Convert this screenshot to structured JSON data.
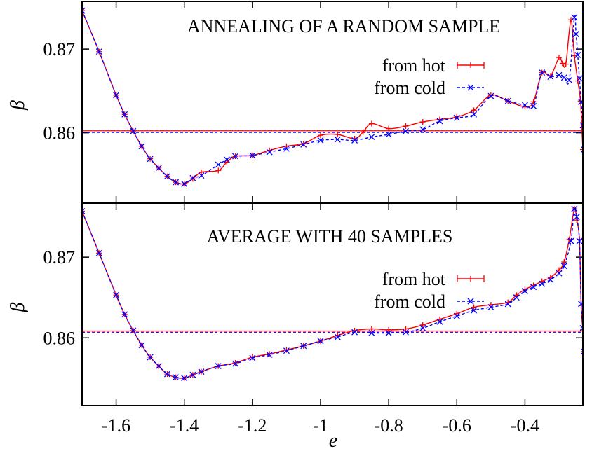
{
  "chart_data": [
    {
      "type": "line",
      "title": "ANNEALING OF A RANDOM SAMPLE",
      "ylabel": "β",
      "xlabel": "",
      "xlim": [
        -1.7,
        -0.23
      ],
      "ylim": [
        0.8516,
        0.8757
      ],
      "yticks": [
        "0.86",
        "0.87"
      ],
      "ytick_values": [
        0.86,
        0.87
      ],
      "grid": false,
      "legend": "top-right",
      "series": [
        {
          "name": "from hot",
          "color": "#ff0000",
          "marker": "plus-errorbar",
          "line": "solid",
          "points": [
            [
              -1.7,
              0.8746
            ],
            [
              -1.65,
              0.8697
            ],
            [
              -1.6,
              0.8645
            ],
            [
              -1.575,
              0.8622
            ],
            [
              -1.55,
              0.8602
            ],
            [
              -1.525,
              0.8584
            ],
            [
              -1.5,
              0.8569
            ],
            [
              -1.475,
              0.8558
            ],
            [
              -1.45,
              0.8548
            ],
            [
              -1.425,
              0.8541
            ],
            [
              -1.4,
              0.8539
            ],
            [
              -1.375,
              0.8545
            ],
            [
              -1.35,
              0.8553
            ],
            [
              -1.3,
              0.8555
            ],
            [
              -1.275,
              0.8565
            ],
            [
              -1.25,
              0.8572
            ],
            [
              -1.2,
              0.8573
            ],
            [
              -1.15,
              0.8579
            ],
            [
              -1.1,
              0.8584
            ],
            [
              -1.05,
              0.8587
            ],
            [
              -1.0,
              0.8597
            ],
            [
              -0.95,
              0.8598
            ],
            [
              -0.9,
              0.8593
            ],
            [
              -0.875,
              0.8601
            ],
            [
              -0.85,
              0.8611
            ],
            [
              -0.8,
              0.8605
            ],
            [
              -0.75,
              0.8608
            ],
            [
              -0.7,
              0.8613
            ],
            [
              -0.65,
              0.8616
            ],
            [
              -0.6,
              0.8619
            ],
            [
              -0.55,
              0.8627
            ],
            [
              -0.5,
              0.8645
            ],
            [
              -0.45,
              0.8638
            ],
            [
              -0.4,
              0.8631
            ],
            [
              -0.375,
              0.8637
            ],
            [
              -0.35,
              0.8672
            ],
            [
              -0.325,
              0.8668
            ],
            [
              -0.3,
              0.869
            ],
            [
              -0.29,
              0.8683
            ],
            [
              -0.28,
              0.8682
            ],
            [
              -0.265,
              0.8735
            ],
            [
              -0.255,
              0.8692
            ],
            [
              -0.245,
              0.8662
            ],
            [
              -0.237,
              0.8638
            ],
            [
              -0.23,
              0.858
            ]
          ]
        },
        {
          "name": "from cold",
          "color": "#0000ff",
          "marker": "cross",
          "line": "dashed",
          "points": [
            [
              -1.7,
              0.8746
            ],
            [
              -1.65,
              0.8697
            ],
            [
              -1.6,
              0.8645
            ],
            [
              -1.575,
              0.8622
            ],
            [
              -1.55,
              0.8602
            ],
            [
              -1.525,
              0.8584
            ],
            [
              -1.5,
              0.8569
            ],
            [
              -1.475,
              0.8558
            ],
            [
              -1.45,
              0.8548
            ],
            [
              -1.425,
              0.8541
            ],
            [
              -1.4,
              0.8539
            ],
            [
              -1.375,
              0.8546
            ],
            [
              -1.35,
              0.8549
            ],
            [
              -1.3,
              0.8562
            ],
            [
              -1.275,
              0.8568
            ],
            [
              -1.25,
              0.8572
            ],
            [
              -1.2,
              0.8573
            ],
            [
              -1.15,
              0.8577
            ],
            [
              -1.1,
              0.8581
            ],
            [
              -1.05,
              0.8586
            ],
            [
              -1.0,
              0.8591
            ],
            [
              -0.95,
              0.8592
            ],
            [
              -0.9,
              0.8591
            ],
            [
              -0.85,
              0.8595
            ],
            [
              -0.8,
              0.8598
            ],
            [
              -0.75,
              0.8602
            ],
            [
              -0.7,
              0.8604
            ],
            [
              -0.65,
              0.8614
            ],
            [
              -0.6,
              0.8618
            ],
            [
              -0.55,
              0.8622
            ],
            [
              -0.5,
              0.8644
            ],
            [
              -0.45,
              0.8638
            ],
            [
              -0.4,
              0.8633
            ],
            [
              -0.375,
              0.8632
            ],
            [
              -0.35,
              0.8672
            ],
            [
              -0.325,
              0.8667
            ],
            [
              -0.3,
              0.8669
            ],
            [
              -0.285,
              0.8666
            ],
            [
              -0.27,
              0.8663
            ],
            [
              -0.255,
              0.8738
            ],
            [
              -0.25,
              0.8718
            ],
            [
              -0.245,
              0.8693
            ],
            [
              -0.24,
              0.8665
            ],
            [
              -0.235,
              0.8637
            ],
            [
              -0.23,
              0.8609
            ],
            [
              -0.227,
              0.858
            ]
          ]
        }
      ],
      "hlines": [
        {
          "series": "from hot",
          "y": 0.86024
        },
        {
          "series": "from cold",
          "y": 0.86004
        }
      ]
    },
    {
      "type": "line",
      "title": "AVERAGE WITH 40 SAMPLES",
      "ylabel": "β",
      "xlabel": "e",
      "xlim": [
        -1.7,
        -0.23
      ],
      "ylim": [
        0.8516,
        0.8767
      ],
      "xticks": [
        "-1.6",
        "-1.4",
        "-1.2",
        "-1",
        "-0.8",
        "-0.6",
        "-0.4"
      ],
      "xtick_values": [
        -1.6,
        -1.4,
        -1.2,
        -1.0,
        -0.8,
        -0.6,
        -0.4
      ],
      "yticks": [
        "0.86",
        "0.87"
      ],
      "ytick_values": [
        0.86,
        0.87
      ],
      "grid": false,
      "legend": "top-right",
      "series": [
        {
          "name": "from hot",
          "color": "#ff0000",
          "marker": "plus-errorbar",
          "line": "solid",
          "points": [
            [
              -1.7,
              0.8757
            ],
            [
              -1.65,
              0.8705
            ],
            [
              -1.6,
              0.8653
            ],
            [
              -1.575,
              0.8629
            ],
            [
              -1.55,
              0.8609
            ],
            [
              -1.525,
              0.8591
            ],
            [
              -1.5,
              0.8576
            ],
            [
              -1.475,
              0.8565
            ],
            [
              -1.45,
              0.8555
            ],
            [
              -1.425,
              0.8551
            ],
            [
              -1.4,
              0.855
            ],
            [
              -1.375,
              0.8554
            ],
            [
              -1.35,
              0.8558
            ],
            [
              -1.3,
              0.8565
            ],
            [
              -1.25,
              0.8569
            ],
            [
              -1.2,
              0.8576
            ],
            [
              -1.15,
              0.858
            ],
            [
              -1.1,
              0.8585
            ],
            [
              -1.05,
              0.859
            ],
            [
              -1.0,
              0.8596
            ],
            [
              -0.95,
              0.8603
            ],
            [
              -0.9,
              0.8609
            ],
            [
              -0.85,
              0.8611
            ],
            [
              -0.8,
              0.861
            ],
            [
              -0.75,
              0.8611
            ],
            [
              -0.7,
              0.8616
            ],
            [
              -0.65,
              0.8623
            ],
            [
              -0.6,
              0.863
            ],
            [
              -0.55,
              0.8638
            ],
            [
              -0.5,
              0.8641
            ],
            [
              -0.45,
              0.8644
            ],
            [
              -0.425,
              0.8653
            ],
            [
              -0.4,
              0.866
            ],
            [
              -0.375,
              0.8665
            ],
            [
              -0.35,
              0.867
            ],
            [
              -0.325,
              0.8675
            ],
            [
              -0.3,
              0.8684
            ],
            [
              -0.285,
              0.8694
            ],
            [
              -0.27,
              0.8722
            ],
            [
              -0.255,
              0.876
            ],
            [
              -0.248,
              0.8746
            ],
            [
              -0.24,
              0.8722
            ],
            [
              -0.235,
              0.864
            ],
            [
              -0.23,
              0.861
            ],
            [
              -0.227,
              0.8583
            ]
          ]
        },
        {
          "name": "from cold",
          "color": "#0000ff",
          "marker": "cross",
          "line": "dashed",
          "points": [
            [
              -1.7,
              0.8757
            ],
            [
              -1.65,
              0.8705
            ],
            [
              -1.6,
              0.8653
            ],
            [
              -1.575,
              0.8629
            ],
            [
              -1.55,
              0.8609
            ],
            [
              -1.525,
              0.8591
            ],
            [
              -1.5,
              0.8576
            ],
            [
              -1.475,
              0.8565
            ],
            [
              -1.45,
              0.8555
            ],
            [
              -1.425,
              0.8551
            ],
            [
              -1.4,
              0.855
            ],
            [
              -1.375,
              0.8554
            ],
            [
              -1.35,
              0.8558
            ],
            [
              -1.3,
              0.8565
            ],
            [
              -1.25,
              0.8568
            ],
            [
              -1.2,
              0.8575
            ],
            [
              -1.15,
              0.8579
            ],
            [
              -1.1,
              0.8584
            ],
            [
              -1.05,
              0.859
            ],
            [
              -1.0,
              0.8596
            ],
            [
              -0.95,
              0.8601
            ],
            [
              -0.9,
              0.8607
            ],
            [
              -0.85,
              0.8606
            ],
            [
              -0.8,
              0.8606
            ],
            [
              -0.75,
              0.8607
            ],
            [
              -0.7,
              0.8612
            ],
            [
              -0.65,
              0.862
            ],
            [
              -0.6,
              0.8627
            ],
            [
              -0.55,
              0.8634
            ],
            [
              -0.5,
              0.8638
            ],
            [
              -0.45,
              0.8642
            ],
            [
              -0.425,
              0.865
            ],
            [
              -0.4,
              0.8658
            ],
            [
              -0.375,
              0.8663
            ],
            [
              -0.35,
              0.8667
            ],
            [
              -0.325,
              0.8672
            ],
            [
              -0.3,
              0.868
            ],
            [
              -0.285,
              0.8689
            ],
            [
              -0.265,
              0.872
            ],
            [
              -0.255,
              0.876
            ],
            [
              -0.248,
              0.875
            ],
            [
              -0.24,
              0.872
            ],
            [
              -0.235,
              0.8642
            ],
            [
              -0.23,
              0.8612
            ],
            [
              -0.227,
              0.8583
            ]
          ]
        }
      ],
      "hlines": [
        {
          "series": "from hot",
          "y": 0.86085
        },
        {
          "series": "from cold",
          "y": 0.8607
        }
      ]
    }
  ]
}
